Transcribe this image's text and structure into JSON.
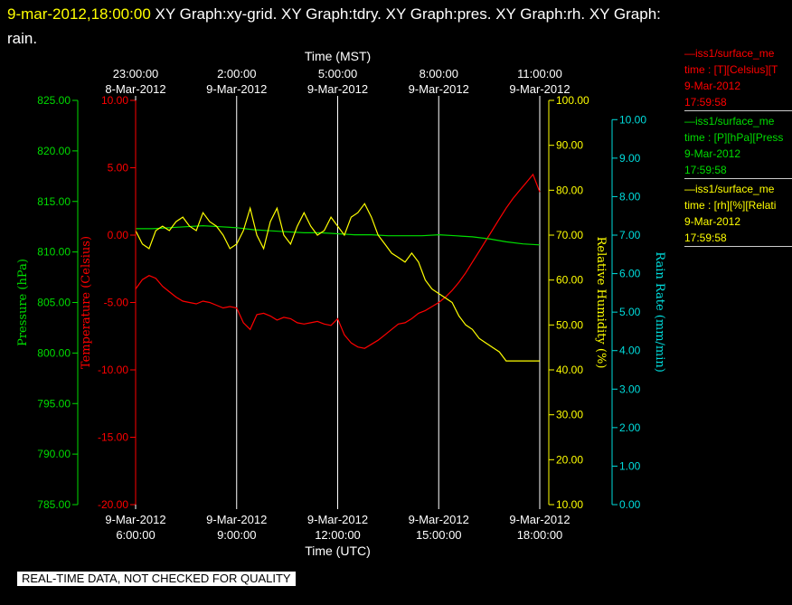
{
  "title": {
    "date": "9-mar-2012,18:00:00",
    "line1": "XY Graph:xy-grid.  XY Graph:tdry.  XY Graph:pres.  XY Graph:rh.  XY Graph:",
    "line2": "rain."
  },
  "colors": {
    "temperature": "#ff0000",
    "pressure": "#00dd00",
    "humidity": "#ffff00",
    "rain": "#00dddd",
    "grid": "#ffffff"
  },
  "legend": [
    {
      "line1": "—iss1/surface_me",
      "line2": "time : [T][Celsius][T",
      "line3": "9-Mar-2012",
      "line4": "17:59:58",
      "color": "#ff0000"
    },
    {
      "line1": "—iss1/surface_me",
      "line2": "time : [P][hPa][Press",
      "line3": "9-Mar-2012",
      "line4": "17:59:58",
      "color": "#00dd00"
    },
    {
      "line1": "—iss1/surface_me",
      "line2": "time : [rh][%][Relati",
      "line3": "9-Mar-2012",
      "line4": "17:59:58",
      "color": "#ffff00"
    }
  ],
  "quality_note": "REAL-TIME DATA, NOT CHECKED FOR QUALITY",
  "chart_data": {
    "type": "line",
    "grid": true,
    "top_axis": {
      "label": "Time (MST)",
      "ticks": [
        {
          "time": "23:00:00",
          "date": "8-Mar-2012"
        },
        {
          "time": "2:00:00",
          "date": "9-Mar-2012"
        },
        {
          "time": "5:00:00",
          "date": "9-Mar-2012"
        },
        {
          "time": "8:00:00",
          "date": "9-Mar-2012"
        },
        {
          "time": "11:00:00",
          "date": "9-Mar-2012"
        }
      ]
    },
    "bottom_axis": {
      "label": "Time (UTC)",
      "xlim": [
        6,
        18
      ],
      "ticks": [
        {
          "date": "9-Mar-2012",
          "time": "6:00:00"
        },
        {
          "date": "9-Mar-2012",
          "time": "9:00:00"
        },
        {
          "date": "9-Mar-2012",
          "time": "12:00:00"
        },
        {
          "date": "9-Mar-2012",
          "time": "15:00:00"
        },
        {
          "date": "9-Mar-2012",
          "time": "18:00:00"
        }
      ]
    },
    "axes": {
      "pressure": {
        "label": "Pressure (hPa)",
        "ylim": [
          785,
          825
        ],
        "ticks": [
          "825.00",
          "820.00",
          "815.00",
          "810.00",
          "805.00",
          "800.00",
          "795.00",
          "790.00",
          "785.00"
        ]
      },
      "temperature": {
        "label": "Temperature (Celsius)",
        "ylim": [
          -20,
          10
        ],
        "ticks": [
          "10.00",
          "5.00",
          "0.00",
          "-5.00",
          "-10.00",
          "-15.00",
          "-20.00"
        ]
      },
      "humidity": {
        "label": "Relative Humidity (%)",
        "ylim": [
          10,
          100
        ],
        "ticks": [
          "100.00",
          "90.00",
          "80.00",
          "70.00",
          "60.00",
          "50.00",
          "40.00",
          "30.00",
          "20.00",
          "10.00"
        ]
      },
      "rain": {
        "label": "Rain Rate (mm/min)",
        "ylim": [
          0,
          10.5
        ],
        "ticks": [
          "10.00",
          "9.00",
          "8.00",
          "7.00",
          "6.00",
          "5.00",
          "4.00",
          "3.00",
          "2.00",
          "1.00",
          "0.00"
        ]
      }
    },
    "series": [
      {
        "axis": "temperature",
        "color": "#ff0000",
        "x": [
          6.0,
          6.2,
          6.4,
          6.6,
          6.8,
          7.0,
          7.2,
          7.4,
          7.6,
          7.8,
          8.0,
          8.2,
          8.4,
          8.6,
          8.8,
          9.0,
          9.2,
          9.4,
          9.6,
          9.8,
          10.0,
          10.2,
          10.4,
          10.6,
          10.8,
          11.0,
          11.2,
          11.4,
          11.6,
          11.8,
          12.0,
          12.2,
          12.4,
          12.6,
          12.8,
          13.0,
          13.2,
          13.4,
          13.6,
          13.8,
          14.0,
          14.2,
          14.4,
          14.6,
          14.8,
          15.0,
          15.2,
          15.4,
          15.6,
          15.8,
          16.0,
          16.2,
          16.4,
          16.6,
          16.8,
          17.0,
          17.2,
          17.4,
          17.6,
          17.8,
          18.0
        ],
        "y": [
          -4.0,
          -3.3,
          -3.0,
          -3.2,
          -3.8,
          -4.2,
          -4.6,
          -4.9,
          -5.0,
          -5.1,
          -4.9,
          -5.0,
          -5.2,
          -5.4,
          -5.3,
          -5.4,
          -6.5,
          -7.0,
          -5.9,
          -5.8,
          -6.0,
          -6.3,
          -6.1,
          -6.2,
          -6.5,
          -6.6,
          -6.5,
          -6.4,
          -6.6,
          -6.7,
          -6.2,
          -7.4,
          -8.0,
          -8.3,
          -8.4,
          -8.1,
          -7.8,
          -7.4,
          -7.0,
          -6.6,
          -6.5,
          -6.2,
          -5.8,
          -5.6,
          -5.3,
          -5.0,
          -4.6,
          -4.1,
          -3.5,
          -2.8,
          -2.0,
          -1.2,
          -0.4,
          0.4,
          1.2,
          2.0,
          2.7,
          3.3,
          3.9,
          4.5,
          3.2
        ]
      },
      {
        "axis": "pressure",
        "color": "#00dd00",
        "x": [
          6.0,
          6.5,
          7.0,
          7.5,
          8.0,
          8.5,
          9.0,
          9.5,
          10.0,
          10.5,
          11.0,
          11.5,
          12.0,
          12.5,
          13.0,
          13.5,
          14.0,
          14.5,
          15.0,
          15.5,
          16.0,
          16.5,
          17.0,
          17.5,
          18.0
        ],
        "y": [
          812.3,
          812.3,
          812.4,
          812.5,
          812.6,
          812.5,
          812.4,
          812.2,
          812.1,
          812.0,
          811.9,
          811.9,
          811.8,
          811.7,
          811.7,
          811.6,
          811.6,
          811.6,
          811.7,
          811.6,
          811.5,
          811.3,
          811.0,
          810.8,
          810.7
        ]
      },
      {
        "axis": "humidity",
        "color": "#ffff00",
        "x": [
          6.0,
          6.2,
          6.4,
          6.6,
          6.8,
          7.0,
          7.2,
          7.4,
          7.6,
          7.8,
          8.0,
          8.2,
          8.4,
          8.6,
          8.8,
          9.0,
          9.2,
          9.4,
          9.6,
          9.8,
          10.0,
          10.2,
          10.4,
          10.6,
          10.8,
          11.0,
          11.2,
          11.4,
          11.6,
          11.8,
          12.0,
          12.2,
          12.4,
          12.6,
          12.8,
          13.0,
          13.2,
          13.4,
          13.6,
          13.8,
          14.0,
          14.2,
          14.4,
          14.6,
          14.8,
          15.0,
          15.2,
          15.4,
          15.6,
          15.8,
          16.0,
          16.2,
          16.4,
          16.6,
          16.8,
          17.0,
          17.2,
          17.4,
          17.6,
          17.8,
          18.0
        ],
        "y": [
          71,
          68,
          67,
          71,
          72,
          71,
          73,
          74,
          72,
          71,
          75,
          73,
          72,
          70,
          67,
          68,
          71,
          76,
          70,
          67,
          73,
          76,
          70,
          68,
          72,
          75,
          72,
          70,
          71,
          74,
          72,
          70,
          74,
          75,
          77,
          74,
          70,
          68,
          66,
          65,
          64,
          66,
          64,
          60,
          58,
          57,
          56,
          55,
          52,
          50,
          49,
          47,
          46,
          45,
          44,
          42,
          42,
          42,
          42,
          42,
          42
        ]
      },
      {
        "axis": "rain",
        "color": "#00dddd",
        "x": [],
        "y": []
      }
    ]
  }
}
